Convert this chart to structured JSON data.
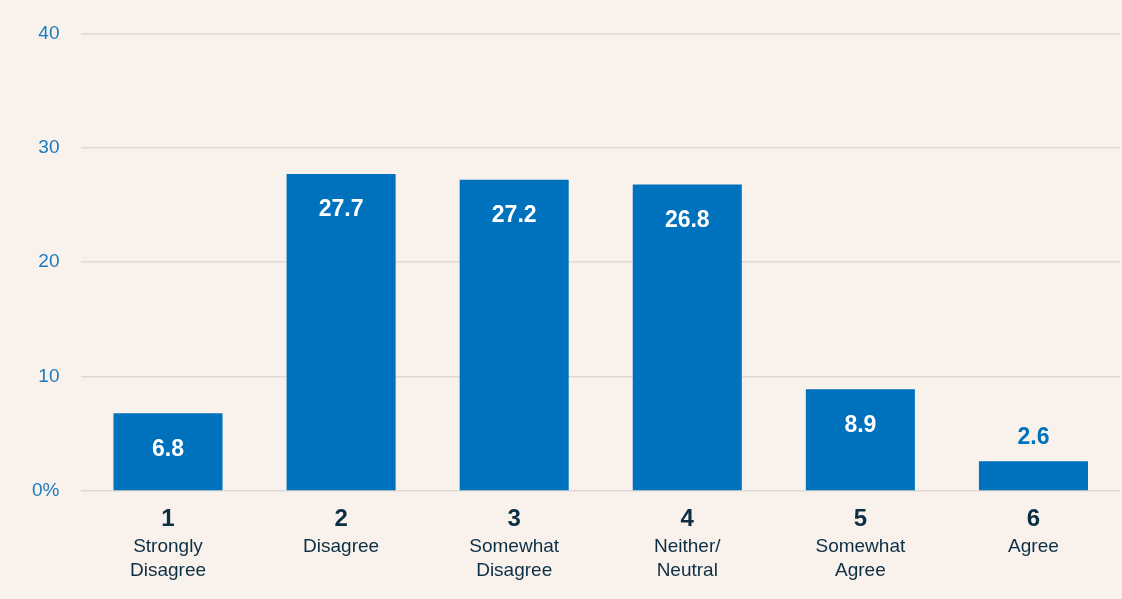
{
  "chart_data": {
    "type": "bar",
    "categories": [
      "1\nStrongly\nDisagree",
      "2\nDisagree",
      "3\nSomewhat\nDisagree",
      "4\nNeither/\nNeutral",
      "5\nSomewhat\nAgree",
      "6\nAgree"
    ],
    "values": [
      6.8,
      27.7,
      27.2,
      26.8,
      8.9,
      2.6
    ],
    "color": "#0071bc",
    "ylim": [
      0,
      40
    ],
    "yticks": [
      {
        "value": 0,
        "label": "0%"
      },
      10,
      20,
      30,
      40
    ],
    "grid": "y",
    "legend": false,
    "data_labels": true
  }
}
